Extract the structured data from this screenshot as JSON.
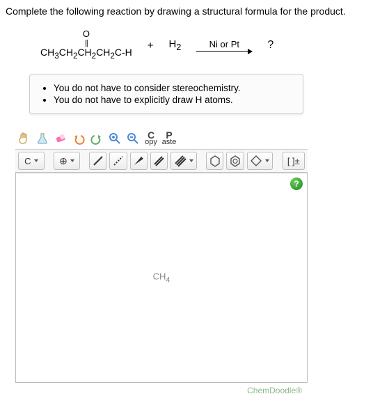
{
  "prompt": "Complete the following reaction by drawing a structural formula for the product.",
  "reaction": {
    "reactant_formula_html": "CH<sub>3</sub>CH<sub>2</sub>CH<sub>2</sub>CH<sub>2</sub>C-H",
    "carbonyl_oxygen": "O",
    "plus": "+",
    "reagent": "H<sub>2</sub>",
    "catalyst": "Ni or Pt",
    "product_placeholder": "?"
  },
  "notes": [
    "You do not have to consider stereochemistry.",
    "You do not have to explicitly draw H atoms."
  ],
  "toolbar1": {
    "copy_big": "C",
    "copy_small": "opy",
    "paste_big": "P",
    "paste_small": "aste"
  },
  "toolbar2": {
    "element": "C",
    "charge_label": "[ ]±"
  },
  "canvas": {
    "placeholder": "CH<sub>4</sub>",
    "help": "?",
    "brand": "ChemDoodle®"
  },
  "colors": {
    "hand": "#c9a24a",
    "flask_body": "#cfe8f7",
    "flask_top": "#e6c15a",
    "eraser": "#ff6fb0",
    "undo": "#f08030",
    "redo": "#60b060",
    "zoom_in": "#4a8ad4",
    "zoom_out": "#4a8ad4",
    "pencil_wood": "#e0b060",
    "pencil_tip": "#333",
    "hex_stroke": "#555"
  }
}
